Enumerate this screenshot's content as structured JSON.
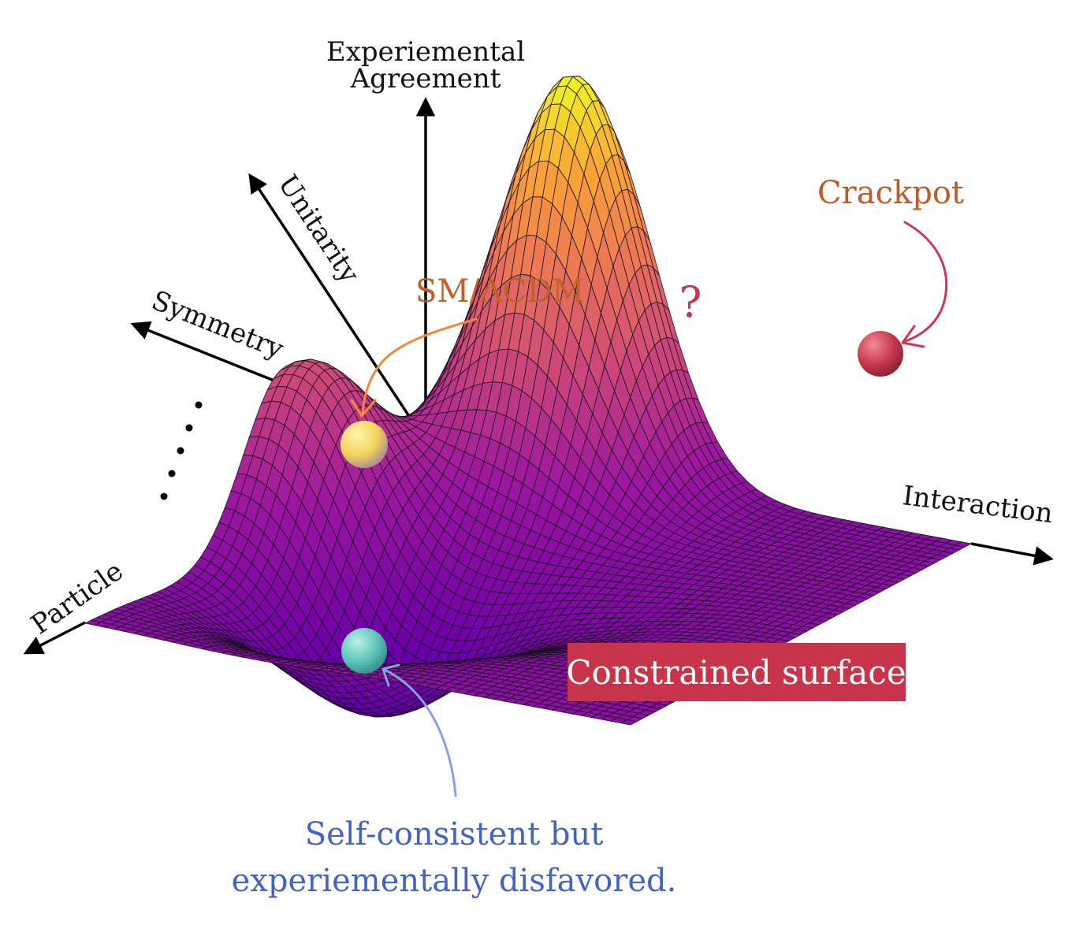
{
  "axes": {
    "vertical_line1": "Experiemental",
    "vertical_line2": "Agreement",
    "unitarity": "Unitarity",
    "symmetry": "Symmetry",
    "particle": "Particle",
    "interaction": "Interaction"
  },
  "annotations": {
    "sm_lcdm": "SM/ΛCDM",
    "crackpot": "Crackpot",
    "question": "?",
    "constrained_surface": "Constrained surface",
    "disfavored_line1": "Self-consistent but",
    "disfavored_line2": "experiementally disfavored."
  },
  "colors": {
    "sm_label": "#c0602c",
    "sm_arrow": "#f08a3a",
    "crackpot_label": "#bb5c2a",
    "crackpot_arrow": "#d0374f",
    "question": "#c8354a",
    "banner_bg": "#c8344a",
    "banner_text": "#ffffff",
    "disfavored_text": "#4563c4",
    "disfavored_arrow": "#8aa0e8"
  },
  "surface": {
    "colormap": "plasma",
    "peaks": [
      {
        "name": "tall-peak",
        "height": 1.0
      },
      {
        "name": "small-peak",
        "height": 0.42
      }
    ],
    "well": {
      "name": "valley",
      "depth": -0.32
    }
  },
  "balls": [
    {
      "name": "sm-ball",
      "color": "#f2d35a"
    },
    {
      "name": "crackpot-ball",
      "color": "#c9384c"
    },
    {
      "name": "disfavored-ball",
      "color": "#5cc6b8"
    }
  ]
}
